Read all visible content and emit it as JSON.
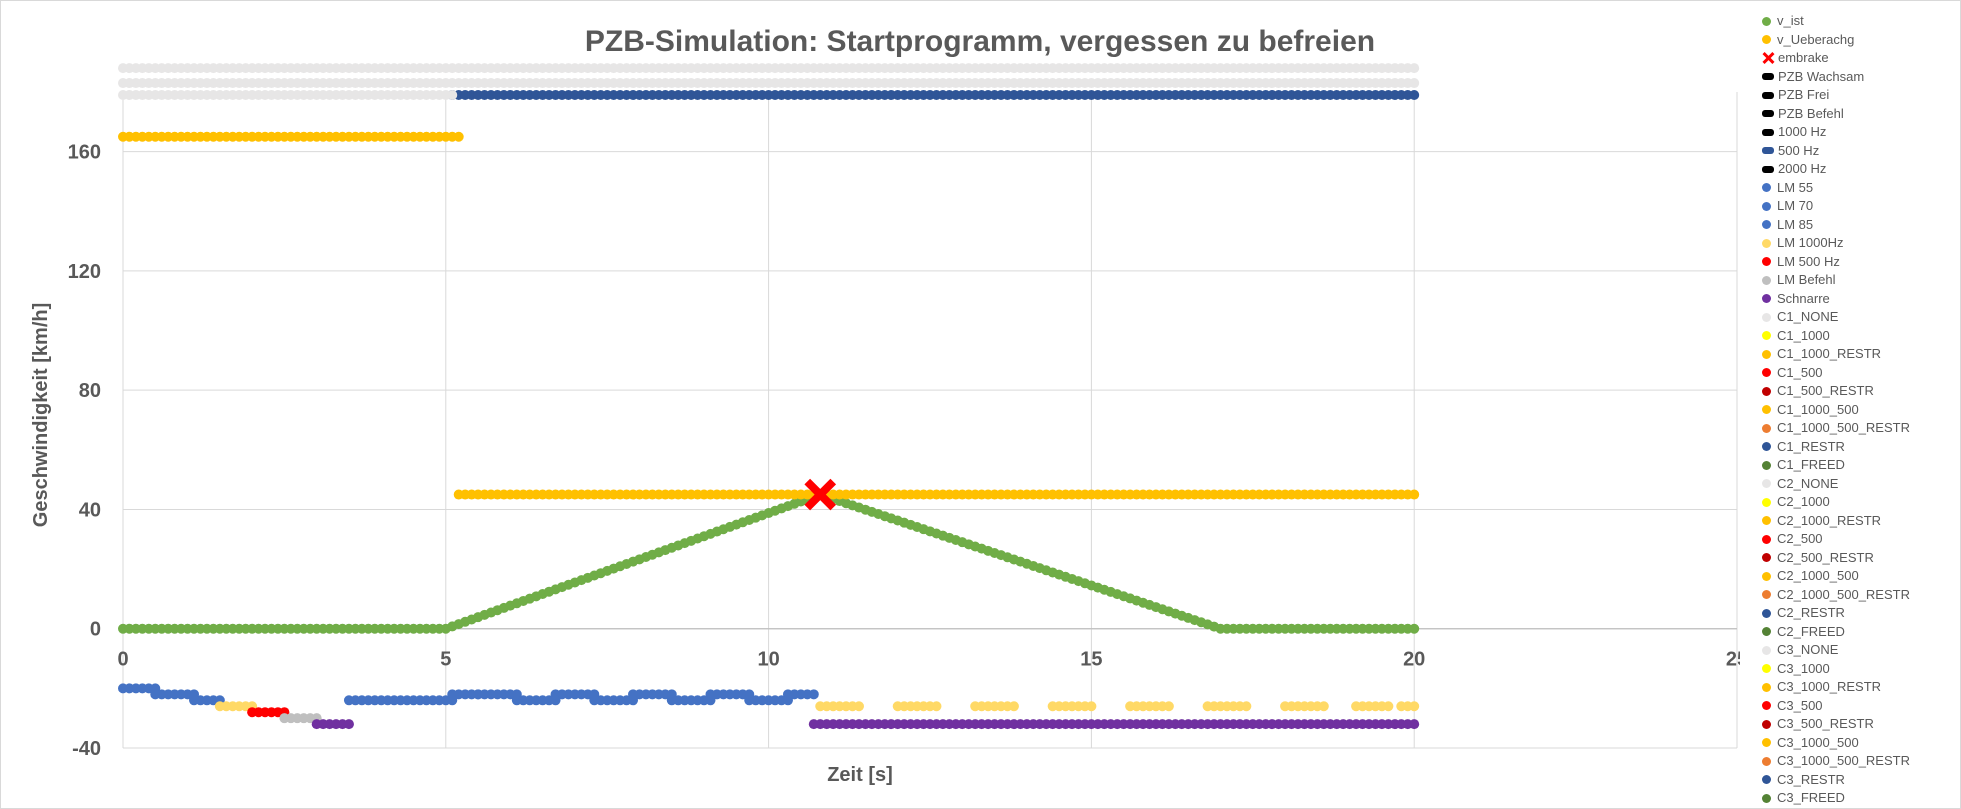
{
  "chart_data": {
    "type": "scatter",
    "title": "PZB-Simulation: Startprogramm, vergessen zu befreien",
    "xlabel": "Zeit [s]",
    "ylabel": "Geschwindigkeit [km/h]",
    "xlim": [
      0,
      25
    ],
    "ylim": [
      -40,
      180
    ],
    "x_ticks": [
      0,
      5,
      10,
      15,
      20,
      25
    ],
    "y_ticks": [
      -40,
      0,
      40,
      80,
      120,
      160
    ],
    "grid": true,
    "legend_position": "right",
    "sample_step": 0.1,
    "series": [
      {
        "name": "v_ist",
        "color": "#70AD47",
        "marker": "circle",
        "segments": [
          {
            "x0": 0,
            "x1": 5,
            "points": [
              [
                0,
                0
              ],
              [
                5,
                0
              ],
              [
                10.8,
                45
              ],
              [
                17,
                0
              ],
              [
                20,
                0
              ]
            ]
          }
        ]
      },
      {
        "name": "v_Ueberachg",
        "color": "#FFC000",
        "marker": "circle",
        "segments": [
          {
            "x0": 0,
            "x1": 5.2,
            "value": 165
          },
          {
            "x0": 5.2,
            "x1": 20,
            "value": 45
          }
        ]
      },
      {
        "name": "embrake",
        "color": "#FF0000",
        "marker": "cross",
        "points": [
          [
            10.8,
            45
          ]
        ]
      },
      {
        "name": "PZB Wachsam",
        "color": "#000000",
        "marker": "dash",
        "segments": []
      },
      {
        "name": "PZB Frei",
        "color": "#000000",
        "marker": "dash",
        "segments": []
      },
      {
        "name": "PZB Befehl",
        "color": "#000000",
        "marker": "dash",
        "segments": []
      },
      {
        "name": "1000 Hz",
        "color": "#000000",
        "marker": "dash",
        "segments": []
      },
      {
        "name": "500 Hz",
        "color": "#2F5597",
        "marker": "dash",
        "segments": [
          {
            "x0": 5.1,
            "x1": 20,
            "value": 179
          }
        ]
      },
      {
        "name": " 2000 Hz",
        "color": "#000000",
        "marker": "dash",
        "segments": []
      },
      {
        "name": "LM 55",
        "color": "#4472C4",
        "marker": "circle",
        "segments": [
          {
            "x0": 0,
            "x1": 0.45,
            "value": -20
          },
          {
            "x0": 3.5,
            "x1": 5.1,
            "value": -24
          },
          {
            "x0": 5.5,
            "x1": 6.1,
            "value": -22
          },
          {
            "x0": 6.7,
            "x1": 7.3,
            "value": -22
          },
          {
            "x0": 7.9,
            "x1": 8.5,
            "value": -22
          },
          {
            "x0": 9.1,
            "x1": 9.7,
            "value": -22
          },
          {
            "x0": 10.3,
            "x1": 10.7,
            "value": -22
          }
        ]
      },
      {
        "name": "LM 70",
        "color": "#4472C4",
        "marker": "circle",
        "segments": [
          {
            "x0": 0.5,
            "x1": 1.05,
            "value": -22
          },
          {
            "x0": 5.1,
            "x1": 5.5,
            "value": -22
          },
          {
            "x0": 6.1,
            "x1": 6.7,
            "value": -24
          },
          {
            "x0": 7.3,
            "x1": 7.9,
            "value": -24
          },
          {
            "x0": 8.5,
            "x1": 9.1,
            "value": -24
          },
          {
            "x0": 9.7,
            "x1": 10.3,
            "value": -24
          }
        ]
      },
      {
        "name": "LM 85",
        "color": "#4472C4",
        "marker": "circle",
        "segments": [
          {
            "x0": 1.1,
            "x1": 1.5,
            "value": -24
          }
        ]
      },
      {
        "name": "LM 1000Hz",
        "color": "#FFD966",
        "marker": "circle",
        "segments": [
          {
            "x0": 1.5,
            "x1": 2.0,
            "value": -26
          },
          {
            "x0": 10.8,
            "x1": 11.4,
            "value": -26
          },
          {
            "x0": 12.0,
            "x1": 12.6,
            "value": -26
          },
          {
            "x0": 13.2,
            "x1": 13.8,
            "value": -26
          },
          {
            "x0": 14.4,
            "x1": 15.0,
            "value": -26
          },
          {
            "x0": 15.6,
            "x1": 16.2,
            "value": -26
          },
          {
            "x0": 16.8,
            "x1": 17.4,
            "value": -26
          },
          {
            "x0": 18.0,
            "x1": 18.6,
            "value": -26
          },
          {
            "x0": 19.1,
            "x1": 19.6,
            "value": -26
          },
          {
            "x0": 19.8,
            "x1": 20,
            "value": -26
          }
        ]
      },
      {
        "name": "LM 500 Hz",
        "color": "#FF0000",
        "marker": "circle",
        "segments": [
          {
            "x0": 2.0,
            "x1": 2.5,
            "value": -28
          }
        ]
      },
      {
        "name": "LM Befehl",
        "color": "#BFBFBF",
        "marker": "circle",
        "segments": [
          {
            "x0": 2.5,
            "x1": 3.0,
            "value": -30
          }
        ]
      },
      {
        "name": "Schnarre",
        "color": "#7030A0",
        "marker": "circle",
        "segments": [
          {
            "x0": 3.0,
            "x1": 3.45,
            "value": -32
          },
          {
            "x0": 10.7,
            "x1": 20,
            "value": -32
          }
        ]
      },
      {
        "name": "C1_NONE",
        "color": "#E7E6E6",
        "marker": "circle",
        "segments": [
          {
            "x0": 0,
            "x1": 20,
            "value": 188
          }
        ]
      },
      {
        "name": "C1_1000",
        "color": "#FFFF00",
        "marker": "circle",
        "segments": []
      },
      {
        "name": "C1_1000_RESTR",
        "color": "#FFC000",
        "marker": "circle",
        "segments": []
      },
      {
        "name": "C1_500",
        "color": "#FF0000",
        "marker": "circle",
        "segments": []
      },
      {
        "name": "C1_500_RESTR",
        "color": "#C00000",
        "marker": "circle",
        "segments": []
      },
      {
        "name": "C1_1000_500",
        "color": "#FFC000",
        "marker": "circle",
        "segments": []
      },
      {
        "name": "C1_1000_500_RESTR",
        "color": "#ED7D31",
        "marker": "circle",
        "segments": []
      },
      {
        "name": "C1_RESTR",
        "color": "#2F5597",
        "marker": "circle",
        "segments": []
      },
      {
        "name": "C1_FREED",
        "color": "#548235",
        "marker": "circle",
        "segments": []
      },
      {
        "name": "C2_NONE",
        "color": "#E7E6E6",
        "marker": "circle",
        "segments": [
          {
            "x0": 0,
            "x1": 20,
            "value": 183
          }
        ]
      },
      {
        "name": "C2_1000",
        "color": "#FFFF00",
        "marker": "circle",
        "segments": []
      },
      {
        "name": "C2_1000_RESTR",
        "color": "#FFC000",
        "marker": "circle",
        "segments": []
      },
      {
        "name": "C2_500",
        "color": "#FF0000",
        "marker": "circle",
        "segments": []
      },
      {
        "name": "C2_500_RESTR",
        "color": "#C00000",
        "marker": "circle",
        "segments": []
      },
      {
        "name": "C2_1000_500",
        "color": "#FFC000",
        "marker": "circle",
        "segments": []
      },
      {
        "name": "C2_1000_500_RESTR",
        "color": "#ED7D31",
        "marker": "circle",
        "segments": []
      },
      {
        "name": "C2_RESTR",
        "color": "#2F5597",
        "marker": "circle",
        "segments": []
      },
      {
        "name": "C2_FREED",
        "color": "#548235",
        "marker": "circle",
        "segments": []
      },
      {
        "name": "C3_NONE",
        "color": "#E7E6E6",
        "marker": "circle",
        "segments": [
          {
            "x0": 0,
            "x1": 5.1,
            "value": 179
          }
        ]
      },
      {
        "name": "C3_1000",
        "color": "#FFFF00",
        "marker": "circle",
        "segments": []
      },
      {
        "name": "C3_1000_RESTR",
        "color": "#FFC000",
        "marker": "circle",
        "segments": []
      },
      {
        "name": "C3_500",
        "color": "#FF0000",
        "marker": "circle",
        "segments": []
      },
      {
        "name": "C3_500_RESTR",
        "color": "#C00000",
        "marker": "circle",
        "segments": []
      },
      {
        "name": "C3_1000_500",
        "color": "#FFC000",
        "marker": "circle",
        "segments": []
      },
      {
        "name": "C3_1000_500_RESTR",
        "color": "#ED7D31",
        "marker": "circle",
        "segments": []
      },
      {
        "name": "C3_RESTR",
        "color": "#2F5597",
        "marker": "circle",
        "segments": []
      },
      {
        "name": "C3_FREED",
        "color": "#548235",
        "marker": "circle",
        "segments": []
      }
    ]
  }
}
